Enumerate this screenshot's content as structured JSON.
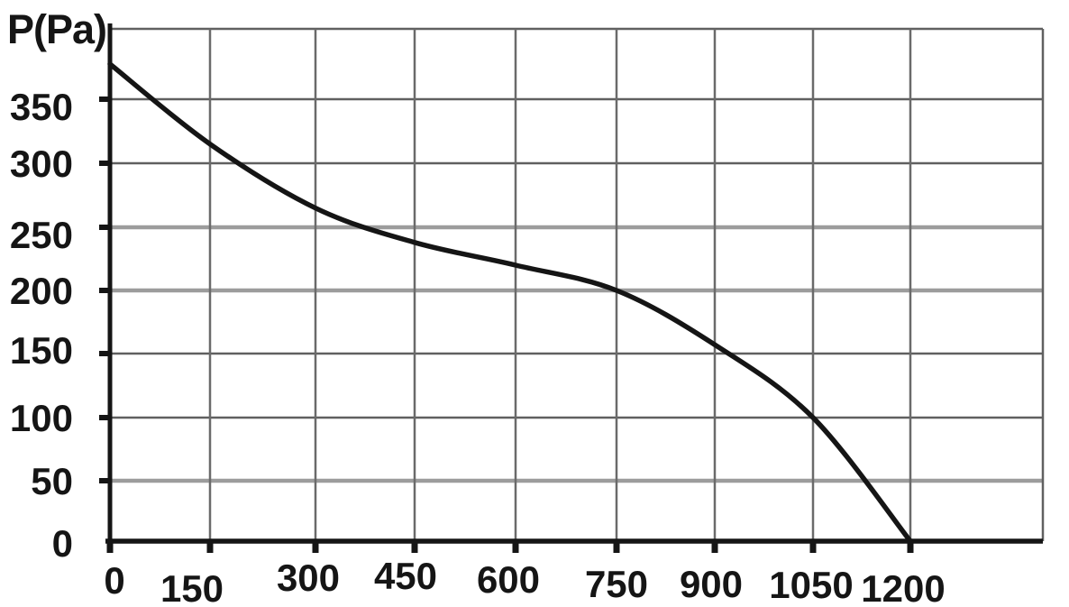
{
  "chart_data": {
    "type": "line",
    "title": "",
    "ylabel": "P(Pa)",
    "xlabel": "",
    "x_tick_labels": [
      "0",
      "150",
      "300",
      "450",
      "600",
      "750",
      "900",
      "1050",
      "1200"
    ],
    "x_tick_values": [
      0,
      150,
      300,
      450,
      600,
      750,
      900,
      1050,
      1200
    ],
    "y_tick_labels": [
      "0",
      "50",
      "100",
      "150",
      "200",
      "250",
      "300",
      "350"
    ],
    "y_tick_values": [
      0,
      50,
      100,
      150,
      200,
      250,
      300,
      350
    ],
    "xlim": [
      0,
      1400
    ],
    "ylim": [
      0,
      400
    ],
    "grid": true,
    "legend": "none",
    "series": [
      {
        "name": "fan-pressure-vs-flow-curve",
        "x": [
          0,
          150,
          300,
          450,
          600,
          750,
          900,
          1050,
          1200
        ],
        "y": [
          375,
          315,
          265,
          238,
          220,
          200,
          157,
          100,
          0
        ],
        "color": "#151515"
      }
    ],
    "heavy_gridlines_at_P": [
      50,
      200,
      250
    ],
    "colors": {
      "background": "#ffffff",
      "axis": "#151515",
      "curve": "#151515",
      "grid_thin": "#606060",
      "grid_heavy": "#9c9c9c",
      "grid_vertical": "#6a6a6a",
      "label": "#151515"
    }
  }
}
